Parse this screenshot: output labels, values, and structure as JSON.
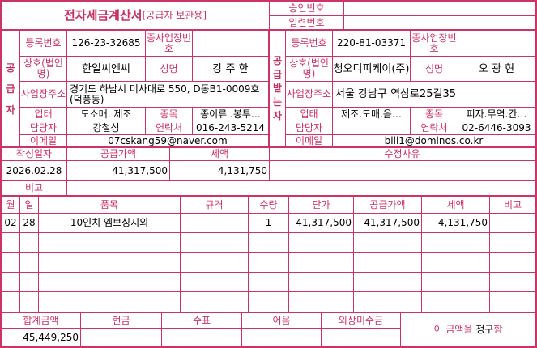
{
  "title": "전자세금계산서",
  "subtitle": "[공급자 보관용]",
  "approval_label": "승인번호",
  "approval_value": "",
  "serial_label": "일련번호",
  "serial_value": "",
  "supplier": {
    "side_label": "공급자",
    "reg_no_label": "등록번호",
    "reg_no": "126-23-32685",
    "sub_biz_label": "종사업장번호",
    "sub_biz": "",
    "company_label": "상호(법인명)",
    "company": "한일씨엔씨",
    "name_label": "성명",
    "name": "강 주 한",
    "address_label": "사업장주소",
    "address": "경기도 하남시 미사대로 550, D동B1-0009호 (덕풍동)",
    "biz_type_label": "업태",
    "biz_type": "도소매. 제조",
    "biz_item_label": "종목",
    "biz_item": "종이류 .봉투…",
    "contact_label": "담당자",
    "contact": "강철성",
    "phone_label": "연락처",
    "phone": "016-243-5214",
    "email_label": "이메일",
    "email": "07cskang59@naver.com"
  },
  "receiver": {
    "side_label": "공급받는자",
    "reg_no_label": "등록번호",
    "reg_no": "220-81-03371",
    "sub_biz_label": "종사업장번호",
    "sub_biz": "",
    "company_label": "상호(법인명)",
    "company": "청오디피케이(주)",
    "name_label": "성명",
    "name": "오 광 현",
    "address_label": "사업장주소",
    "address": "서울 강남구 역삼로25길35",
    "biz_type_label": "업태",
    "biz_type": "제조.도매.음…",
    "biz_item_label": "종목",
    "biz_item": "피자.무역.간…",
    "contact_label": "담당자",
    "contact": "",
    "phone_label": "연락처",
    "phone": "02-6446-3093",
    "email_label": "이메일",
    "email": "bill1@dominos.co.kr"
  },
  "summary": {
    "date_label": "작성일자",
    "date": "2026.02.28",
    "supply_label": "공급가액",
    "supply": "41,317,500",
    "tax_label": "세액",
    "tax": "4,131,750",
    "reason_label": "수정사유",
    "reason": "",
    "note_label": "비고",
    "note": ""
  },
  "items": {
    "headers": [
      "월",
      "일",
      "품목",
      "규격",
      "수량",
      "단가",
      "공급가액",
      "세액",
      "비고"
    ],
    "rows": [
      [
        "02",
        "28",
        "10인치 엠보싱지외",
        "",
        "1",
        "41,317,500",
        "41,317,500",
        "4,131,750",
        ""
      ]
    ]
  },
  "footer": {
    "headers": [
      "합계금액",
      "현금",
      "수표",
      "어음",
      "외상미수금"
    ],
    "values": [
      "45,449,250",
      "",
      "",
      "",
      ""
    ],
    "claim_prefix": "이 금액을 ",
    "claim_word": "청구",
    "claim_suffix": "함"
  }
}
